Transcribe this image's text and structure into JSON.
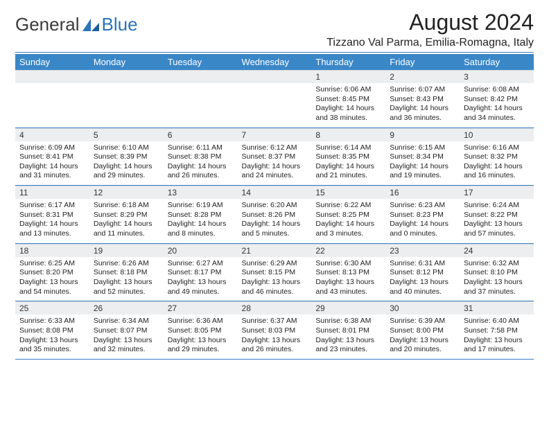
{
  "brand": {
    "name1": "General",
    "name2": "Blue"
  },
  "title": "August 2024",
  "location": "Tizzano Val Parma, Emilia-Romagna, Italy",
  "colors": {
    "header_bg": "#3a87c8",
    "header_text": "#ffffff",
    "daynum_bg": "#eceef0",
    "rule": "#3a7fc2",
    "brand_blue": "#2a74b8",
    "text": "#1a1a1a",
    "background": "#ffffff"
  },
  "weekdays": [
    "Sunday",
    "Monday",
    "Tuesday",
    "Wednesday",
    "Thursday",
    "Friday",
    "Saturday"
  ],
  "weeks": [
    [
      null,
      null,
      null,
      null,
      {
        "n": "1",
        "sr": "6:06 AM",
        "ss": "8:45 PM",
        "dl": "14 hours and 38 minutes."
      },
      {
        "n": "2",
        "sr": "6:07 AM",
        "ss": "8:43 PM",
        "dl": "14 hours and 36 minutes."
      },
      {
        "n": "3",
        "sr": "6:08 AM",
        "ss": "8:42 PM",
        "dl": "14 hours and 34 minutes."
      }
    ],
    [
      {
        "n": "4",
        "sr": "6:09 AM",
        "ss": "8:41 PM",
        "dl": "14 hours and 31 minutes."
      },
      {
        "n": "5",
        "sr": "6:10 AM",
        "ss": "8:39 PM",
        "dl": "14 hours and 29 minutes."
      },
      {
        "n": "6",
        "sr": "6:11 AM",
        "ss": "8:38 PM",
        "dl": "14 hours and 26 minutes."
      },
      {
        "n": "7",
        "sr": "6:12 AM",
        "ss": "8:37 PM",
        "dl": "14 hours and 24 minutes."
      },
      {
        "n": "8",
        "sr": "6:14 AM",
        "ss": "8:35 PM",
        "dl": "14 hours and 21 minutes."
      },
      {
        "n": "9",
        "sr": "6:15 AM",
        "ss": "8:34 PM",
        "dl": "14 hours and 19 minutes."
      },
      {
        "n": "10",
        "sr": "6:16 AM",
        "ss": "8:32 PM",
        "dl": "14 hours and 16 minutes."
      }
    ],
    [
      {
        "n": "11",
        "sr": "6:17 AM",
        "ss": "8:31 PM",
        "dl": "14 hours and 13 minutes."
      },
      {
        "n": "12",
        "sr": "6:18 AM",
        "ss": "8:29 PM",
        "dl": "14 hours and 11 minutes."
      },
      {
        "n": "13",
        "sr": "6:19 AM",
        "ss": "8:28 PM",
        "dl": "14 hours and 8 minutes."
      },
      {
        "n": "14",
        "sr": "6:20 AM",
        "ss": "8:26 PM",
        "dl": "14 hours and 5 minutes."
      },
      {
        "n": "15",
        "sr": "6:22 AM",
        "ss": "8:25 PM",
        "dl": "14 hours and 3 minutes."
      },
      {
        "n": "16",
        "sr": "6:23 AM",
        "ss": "8:23 PM",
        "dl": "14 hours and 0 minutes."
      },
      {
        "n": "17",
        "sr": "6:24 AM",
        "ss": "8:22 PM",
        "dl": "13 hours and 57 minutes."
      }
    ],
    [
      {
        "n": "18",
        "sr": "6:25 AM",
        "ss": "8:20 PM",
        "dl": "13 hours and 54 minutes."
      },
      {
        "n": "19",
        "sr": "6:26 AM",
        "ss": "8:18 PM",
        "dl": "13 hours and 52 minutes."
      },
      {
        "n": "20",
        "sr": "6:27 AM",
        "ss": "8:17 PM",
        "dl": "13 hours and 49 minutes."
      },
      {
        "n": "21",
        "sr": "6:29 AM",
        "ss": "8:15 PM",
        "dl": "13 hours and 46 minutes."
      },
      {
        "n": "22",
        "sr": "6:30 AM",
        "ss": "8:13 PM",
        "dl": "13 hours and 43 minutes."
      },
      {
        "n": "23",
        "sr": "6:31 AM",
        "ss": "8:12 PM",
        "dl": "13 hours and 40 minutes."
      },
      {
        "n": "24",
        "sr": "6:32 AM",
        "ss": "8:10 PM",
        "dl": "13 hours and 37 minutes."
      }
    ],
    [
      {
        "n": "25",
        "sr": "6:33 AM",
        "ss": "8:08 PM",
        "dl": "13 hours and 35 minutes."
      },
      {
        "n": "26",
        "sr": "6:34 AM",
        "ss": "8:07 PM",
        "dl": "13 hours and 32 minutes."
      },
      {
        "n": "27",
        "sr": "6:36 AM",
        "ss": "8:05 PM",
        "dl": "13 hours and 29 minutes."
      },
      {
        "n": "28",
        "sr": "6:37 AM",
        "ss": "8:03 PM",
        "dl": "13 hours and 26 minutes."
      },
      {
        "n": "29",
        "sr": "6:38 AM",
        "ss": "8:01 PM",
        "dl": "13 hours and 23 minutes."
      },
      {
        "n": "30",
        "sr": "6:39 AM",
        "ss": "8:00 PM",
        "dl": "13 hours and 20 minutes."
      },
      {
        "n": "31",
        "sr": "6:40 AM",
        "ss": "7:58 PM",
        "dl": "13 hours and 17 minutes."
      }
    ]
  ],
  "labels": {
    "sunrise": "Sunrise:",
    "sunset": "Sunset:",
    "daylight": "Daylight:"
  }
}
